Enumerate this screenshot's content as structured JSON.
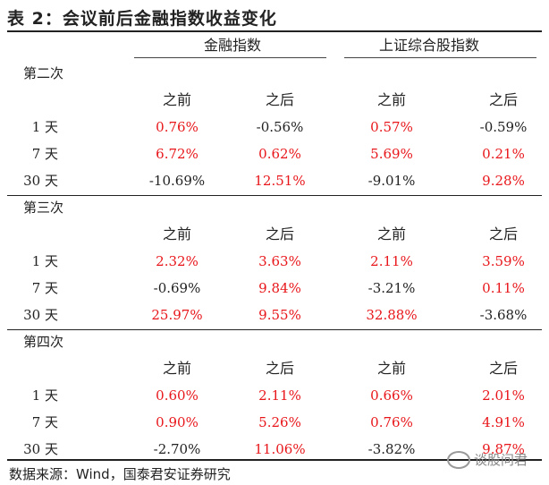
{
  "title": "表 2：会议前后金融指数收益变化",
  "header": {
    "group1": "金融指数",
    "group2": "上证综合股指数"
  },
  "col_labels": [
    "之前",
    "之后",
    "之前",
    "之后"
  ],
  "sections": [
    {
      "name": "第二次",
      "rows": [
        {
          "label": "1 天",
          "values": [
            "0.76%",
            "-0.56%",
            "0.57%",
            "-0.59%"
          ],
          "pos": [
            true,
            false,
            true,
            false
          ]
        },
        {
          "label": "7 天",
          "values": [
            "6.72%",
            "0.62%",
            "5.69%",
            "0.21%"
          ],
          "pos": [
            true,
            true,
            true,
            true
          ]
        },
        {
          "label": "30 天",
          "values": [
            "-10.69%",
            "12.51%",
            "-9.01%",
            "9.28%"
          ],
          "pos": [
            false,
            true,
            false,
            true
          ]
        }
      ]
    },
    {
      "name": "第三次",
      "rows": [
        {
          "label": "1 天",
          "values": [
            "2.32%",
            "3.63%",
            "2.11%",
            "3.59%"
          ],
          "pos": [
            true,
            true,
            true,
            true
          ]
        },
        {
          "label": "7 天",
          "values": [
            "-0.69%",
            "9.84%",
            "-3.21%",
            "0.11%"
          ],
          "pos": [
            false,
            true,
            false,
            true
          ]
        },
        {
          "label": "30 天",
          "values": [
            "25.97%",
            "9.55%",
            "32.88%",
            "-3.68%"
          ],
          "pos": [
            true,
            true,
            true,
            false
          ]
        }
      ]
    },
    {
      "name": "第四次",
      "rows": [
        {
          "label": "1 天",
          "values": [
            "0.60%",
            "2.11%",
            "0.66%",
            "2.01%"
          ],
          "pos": [
            true,
            true,
            true,
            true
          ]
        },
        {
          "label": "7 天",
          "values": [
            "0.90%",
            "5.26%",
            "0.76%",
            "4.91%"
          ],
          "pos": [
            true,
            true,
            true,
            true
          ]
        },
        {
          "label": "30 天",
          "values": [
            "-2.70%",
            "11.06%",
            "-3.82%",
            "9.87%"
          ],
          "pos": [
            false,
            true,
            false,
            true
          ]
        }
      ]
    }
  ],
  "footer": "数据来源：Wind，国泰君安证券研究",
  "watermark": "谈股问君",
  "colors": {
    "positive": "#e8161a",
    "negative": "#222222"
  }
}
